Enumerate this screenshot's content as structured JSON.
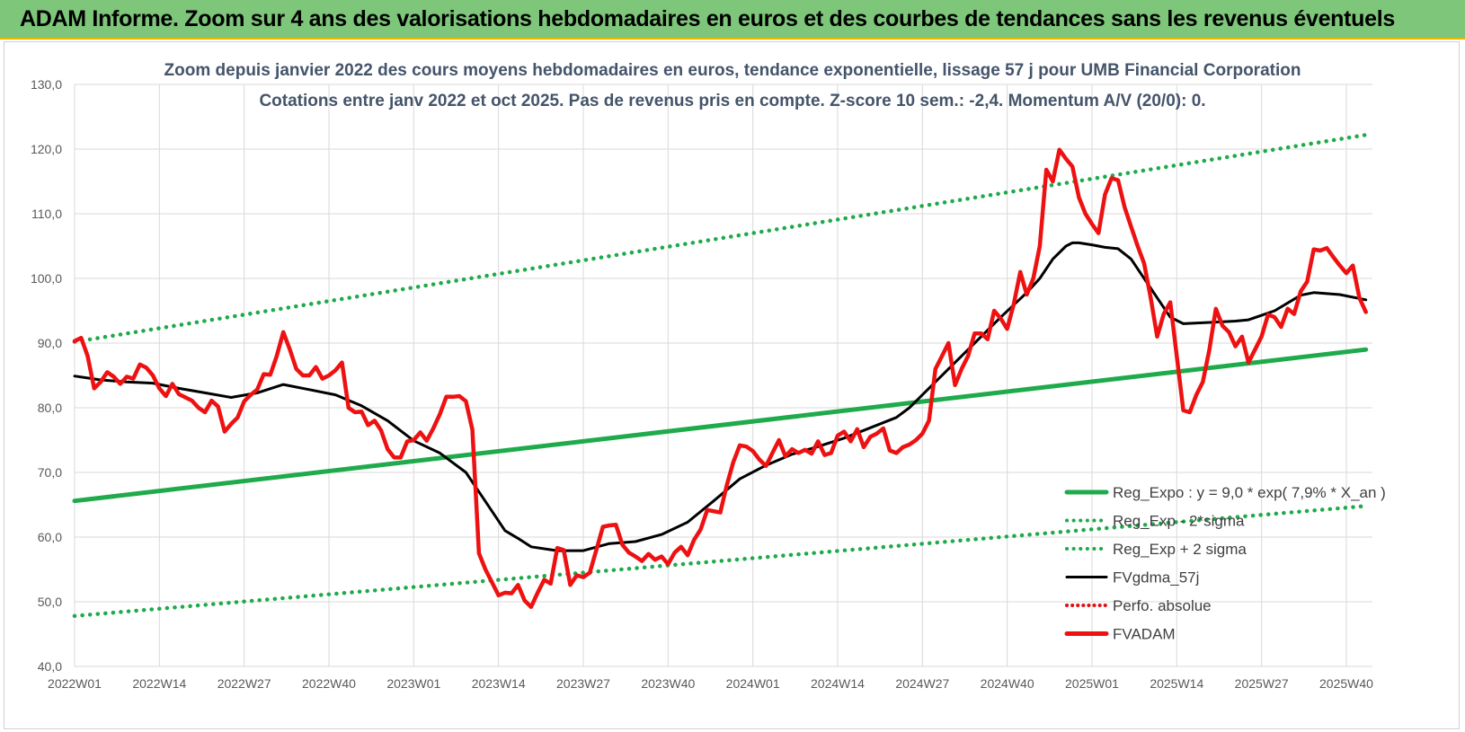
{
  "banner": {
    "title": "ADAM Informe. Zoom sur 4 ans des valorisations hebdomadaires en euros et des courbes de tendances sans les revenus éventuels"
  },
  "colors": {
    "banner_bg": "#7dc67a",
    "trend_green": "#1faa4b",
    "fvgdma": "#000000",
    "fvadam": "#ee1111",
    "perfo": "#e01010",
    "title": "#44546a",
    "grid": "#d9d9d9"
  },
  "chart_data": {
    "type": "line",
    "title": "Zoom depuis janvier 2022 des cours moyens hebdomadaires en euros, tendance exponentielle, lissage 57 j pour UMB Financial Corporation",
    "subtitle": "Cotations entre janv 2022 et oct 2025. Pas de revenus pris en compte. Z-score 10 sem.: -2,4.  Momentum A/V (20/0): 0.",
    "xlabel": "",
    "ylabel": "",
    "ylim": [
      40,
      130
    ],
    "yticks": [
      "40,0",
      "50,0",
      "60,0",
      "70,0",
      "80,0",
      "90,0",
      "100,0",
      "110,0",
      "120,0",
      "130,0"
    ],
    "x_weeks": 199,
    "xticks": [
      {
        "label": "2022W01",
        "week": 0
      },
      {
        "label": "2022W14",
        "week": 13
      },
      {
        "label": "2022W27",
        "week": 26
      },
      {
        "label": "2022W40",
        "week": 39
      },
      {
        "label": "2023W01",
        "week": 52
      },
      {
        "label": "2023W14",
        "week": 65
      },
      {
        "label": "2023W27",
        "week": 78
      },
      {
        "label": "2023W40",
        "week": 91
      },
      {
        "label": "2024W01",
        "week": 104
      },
      {
        "label": "2024W14",
        "week": 117
      },
      {
        "label": "2024W27",
        "week": 130
      },
      {
        "label": "2024W40",
        "week": 143
      },
      {
        "label": "2025W01",
        "week": 156
      },
      {
        "label": "2025W14",
        "week": 169
      },
      {
        "label": "2025W27",
        "week": 182
      },
      {
        "label": "2025W40",
        "week": 195
      }
    ],
    "grid": true,
    "legend_position": "bottom-right",
    "series": [
      {
        "name": "Reg_Expo : y = 9,0 * exp( 7,9% *  X_an )",
        "style": "solid-thick",
        "color": "#1faa4b",
        "points": [
          [
            0,
            65.6
          ],
          [
            198,
            89.0
          ]
        ]
      },
      {
        "name": "Reg_Exp - 2*sigma",
        "style": "dotted",
        "color": "#1faa4b",
        "points": [
          [
            0,
            47.8
          ],
          [
            198,
            64.8
          ]
        ]
      },
      {
        "name": "Reg_Exp + 2 sigma",
        "style": "dotted",
        "color": "#1faa4b",
        "points": [
          [
            0,
            90.2
          ],
          [
            198,
            122.2
          ]
        ]
      },
      {
        "name": "FVgdma_57j",
        "style": "solid",
        "color": "#000000",
        "points": [
          [
            0,
            84.9
          ],
          [
            4,
            84.3
          ],
          [
            8,
            84.0
          ],
          [
            12,
            83.8
          ],
          [
            16,
            83.0
          ],
          [
            20,
            82.3
          ],
          [
            24,
            81.6
          ],
          [
            28,
            82.3
          ],
          [
            32,
            83.6
          ],
          [
            36,
            82.8
          ],
          [
            40,
            82.0
          ],
          [
            44,
            80.3
          ],
          [
            48,
            78.0
          ],
          [
            52,
            74.9
          ],
          [
            56,
            73.0
          ],
          [
            60,
            70.0
          ],
          [
            62,
            67.0
          ],
          [
            64,
            64.0
          ],
          [
            66,
            61.0
          ],
          [
            68,
            59.8
          ],
          [
            70,
            58.5
          ],
          [
            74,
            57.9
          ],
          [
            78,
            57.9
          ],
          [
            82,
            59.0
          ],
          [
            86,
            59.3
          ],
          [
            90,
            60.4
          ],
          [
            94,
            62.3
          ],
          [
            98,
            65.6
          ],
          [
            102,
            69.0
          ],
          [
            106,
            71.1
          ],
          [
            110,
            72.8
          ],
          [
            114,
            74.0
          ],
          [
            118,
            75.3
          ],
          [
            122,
            76.9
          ],
          [
            126,
            78.5
          ],
          [
            128,
            80.0
          ],
          [
            130,
            82.0
          ],
          [
            134,
            86.0
          ],
          [
            138,
            90.0
          ],
          [
            142,
            94.0
          ],
          [
            146,
            97.8
          ],
          [
            148,
            100.0
          ],
          [
            150,
            103.0
          ],
          [
            152,
            105.0
          ],
          [
            153,
            105.5
          ],
          [
            154,
            105.5
          ],
          [
            156,
            105.2
          ],
          [
            158,
            104.8
          ],
          [
            160,
            104.6
          ],
          [
            162,
            103.0
          ],
          [
            164,
            100.0
          ],
          [
            166,
            97.0
          ],
          [
            168,
            94.0
          ],
          [
            170,
            93.0
          ],
          [
            174,
            93.2
          ],
          [
            178,
            93.4
          ],
          [
            180,
            93.6
          ],
          [
            184,
            95.0
          ],
          [
            188,
            97.4
          ],
          [
            190,
            97.8
          ],
          [
            194,
            97.5
          ],
          [
            198,
            96.7
          ]
        ]
      },
      {
        "name": "Perfo. absolue",
        "style": "dotted",
        "color": "#e01010",
        "points": []
      },
      {
        "name": "FVADAM",
        "style": "solid-thick",
        "color": "#ee1111",
        "points": [
          [
            0,
            90.3
          ],
          [
            1,
            90.8
          ],
          [
            2,
            88.0
          ],
          [
            3,
            83.0
          ],
          [
            4,
            84.0
          ],
          [
            5,
            85.5
          ],
          [
            6,
            84.8
          ],
          [
            7,
            83.7
          ],
          [
            8,
            84.8
          ],
          [
            9,
            84.5
          ],
          [
            10,
            86.7
          ],
          [
            11,
            86.2
          ],
          [
            12,
            85.0
          ],
          [
            13,
            83.0
          ],
          [
            14,
            81.8
          ],
          [
            15,
            83.7
          ],
          [
            16,
            82.1
          ],
          [
            17,
            81.6
          ],
          [
            18,
            81.1
          ],
          [
            19,
            80.0
          ],
          [
            20,
            79.3
          ],
          [
            21,
            81.1
          ],
          [
            22,
            80.2
          ],
          [
            23,
            76.3
          ],
          [
            24,
            77.5
          ],
          [
            25,
            78.5
          ],
          [
            26,
            81.0
          ],
          [
            27,
            82.0
          ],
          [
            28,
            82.8
          ],
          [
            29,
            85.2
          ],
          [
            30,
            85.1
          ],
          [
            31,
            88.0
          ],
          [
            32,
            91.7
          ],
          [
            33,
            89.0
          ],
          [
            34,
            86.0
          ],
          [
            35,
            85.0
          ],
          [
            36,
            85.0
          ],
          [
            37,
            86.3
          ],
          [
            38,
            84.5
          ],
          [
            39,
            85.0
          ],
          [
            40,
            85.8
          ],
          [
            41,
            87.0
          ],
          [
            42,
            80.0
          ],
          [
            43,
            79.3
          ],
          [
            44,
            79.4
          ],
          [
            45,
            77.3
          ],
          [
            46,
            78.0
          ],
          [
            47,
            76.5
          ],
          [
            48,
            73.6
          ],
          [
            49,
            72.3
          ],
          [
            50,
            72.3
          ],
          [
            51,
            74.8
          ],
          [
            52,
            75.0
          ],
          [
            53,
            76.2
          ],
          [
            54,
            74.9
          ],
          [
            55,
            76.8
          ],
          [
            56,
            79.0
          ],
          [
            57,
            81.7
          ],
          [
            58,
            81.7
          ],
          [
            59,
            81.8
          ],
          [
            60,
            81.0
          ],
          [
            61,
            76.6
          ],
          [
            62,
            57.5
          ],
          [
            63,
            55.0
          ],
          [
            64,
            53.0
          ],
          [
            65,
            51.0
          ],
          [
            66,
            51.4
          ],
          [
            67,
            51.3
          ],
          [
            68,
            52.6
          ],
          [
            69,
            50.2
          ],
          [
            70,
            49.2
          ],
          [
            71,
            51.4
          ],
          [
            72,
            53.4
          ],
          [
            73,
            52.8
          ],
          [
            74,
            58.3
          ],
          [
            75,
            58.0
          ],
          [
            76,
            52.6
          ],
          [
            77,
            54.1
          ],
          [
            78,
            53.8
          ],
          [
            79,
            54.5
          ],
          [
            80,
            58.0
          ],
          [
            81,
            61.6
          ],
          [
            82,
            61.8
          ],
          [
            83,
            61.9
          ],
          [
            84,
            58.8
          ],
          [
            85,
            57.6
          ],
          [
            86,
            57.0
          ],
          [
            87,
            56.3
          ],
          [
            88,
            57.4
          ],
          [
            89,
            56.5
          ],
          [
            90,
            57.0
          ],
          [
            91,
            55.8
          ],
          [
            92,
            57.6
          ],
          [
            93,
            58.5
          ],
          [
            94,
            57.2
          ],
          [
            95,
            59.6
          ],
          [
            96,
            61.2
          ],
          [
            97,
            64.2
          ],
          [
            98,
            64.0
          ],
          [
            99,
            63.8
          ],
          [
            100,
            68.0
          ],
          [
            101,
            71.6
          ],
          [
            102,
            74.2
          ],
          [
            103,
            74.0
          ],
          [
            104,
            73.3
          ],
          [
            105,
            72.0
          ],
          [
            106,
            71.0
          ],
          [
            107,
            73.0
          ],
          [
            108,
            75.0
          ],
          [
            109,
            72.5
          ],
          [
            110,
            73.6
          ],
          [
            111,
            73.0
          ],
          [
            112,
            73.5
          ],
          [
            113,
            72.9
          ],
          [
            114,
            74.8
          ],
          [
            115,
            72.7
          ],
          [
            116,
            73.0
          ],
          [
            117,
            75.7
          ],
          [
            118,
            76.3
          ],
          [
            119,
            74.8
          ],
          [
            120,
            76.7
          ],
          [
            121,
            73.9
          ],
          [
            122,
            75.5
          ],
          [
            123,
            76.0
          ],
          [
            124,
            76.8
          ],
          [
            125,
            73.4
          ],
          [
            126,
            73.0
          ],
          [
            127,
            73.9
          ],
          [
            128,
            74.3
          ],
          [
            129,
            75.0
          ],
          [
            130,
            76.0
          ],
          [
            131,
            78.0
          ],
          [
            132,
            86.0
          ],
          [
            133,
            88.0
          ],
          [
            134,
            90.0
          ],
          [
            135,
            83.5
          ],
          [
            136,
            86.0
          ],
          [
            137,
            88.0
          ],
          [
            138,
            91.5
          ],
          [
            139,
            91.5
          ],
          [
            140,
            90.6
          ],
          [
            141,
            95.0
          ],
          [
            142,
            93.8
          ],
          [
            143,
            92.2
          ],
          [
            144,
            96.0
          ],
          [
            145,
            101.0
          ],
          [
            146,
            97.5
          ],
          [
            147,
            100.0
          ],
          [
            148,
            105.0
          ],
          [
            149,
            116.8
          ],
          [
            150,
            115.0
          ],
          [
            151,
            119.9
          ],
          [
            152,
            118.5
          ],
          [
            153,
            117.3
          ],
          [
            154,
            112.5
          ],
          [
            155,
            110.0
          ],
          [
            156,
            108.4
          ],
          [
            157,
            107.0
          ],
          [
            158,
            113.0
          ],
          [
            159,
            115.5
          ],
          [
            160,
            115.2
          ],
          [
            161,
            111.0
          ],
          [
            162,
            108.0
          ],
          [
            163,
            105.0
          ],
          [
            164,
            102.3
          ],
          [
            165,
            97.0
          ],
          [
            166,
            91.0
          ],
          [
            167,
            94.5
          ],
          [
            168,
            96.3
          ],
          [
            169,
            88.0
          ],
          [
            170,
            79.6
          ],
          [
            171,
            79.3
          ],
          [
            172,
            82.0
          ],
          [
            173,
            84.0
          ],
          [
            174,
            89.0
          ],
          [
            175,
            95.3
          ],
          [
            176,
            92.7
          ],
          [
            177,
            91.7
          ],
          [
            178,
            89.5
          ],
          [
            179,
            91.0
          ],
          [
            180,
            87.0
          ],
          [
            181,
            89.0
          ],
          [
            182,
            91.0
          ],
          [
            183,
            94.4
          ],
          [
            184,
            94.0
          ],
          [
            185,
            92.5
          ],
          [
            186,
            95.3
          ],
          [
            187,
            94.5
          ],
          [
            188,
            98.0
          ],
          [
            189,
            99.5
          ],
          [
            190,
            104.5
          ],
          [
            191,
            104.3
          ],
          [
            192,
            104.7
          ],
          [
            193,
            103.3
          ],
          [
            194,
            102.0
          ],
          [
            195,
            100.8
          ],
          [
            196,
            102.0
          ],
          [
            197,
            97.0
          ],
          [
            198,
            94.8
          ]
        ]
      }
    ]
  }
}
